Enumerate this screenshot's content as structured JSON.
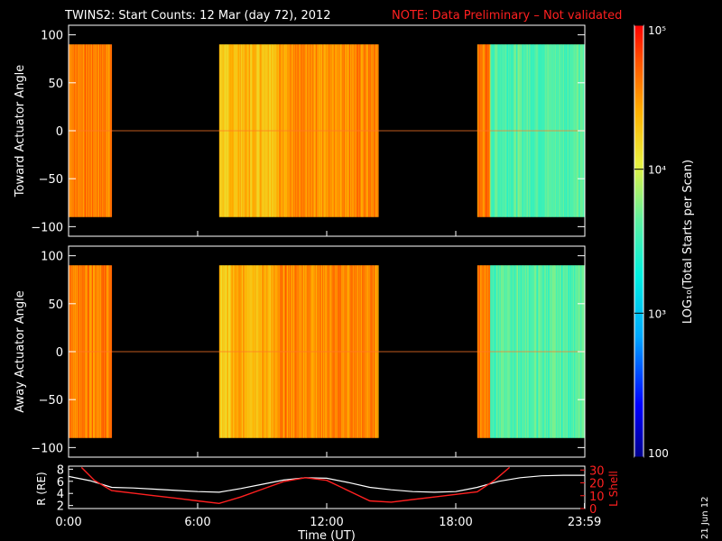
{
  "header": {
    "title": "TWINS2: Start Counts: 12 Mar (day  72), 2012",
    "note": "NOTE: Data Preliminary – Not validated",
    "note_color": "#ff2020"
  },
  "footer": {
    "date_stamp": "21 Jun 12"
  },
  "colors": {
    "background": "#000000",
    "axes": "#ffffff",
    "lshell": "#ff2020"
  },
  "chart_data": [
    {
      "type": "heatmap",
      "title": "",
      "ylabel": "Toward Actuator Angle",
      "xlabel": "",
      "ylim": [
        -110,
        110
      ],
      "xlim_hours": [
        0,
        24
      ],
      "yticks": [
        100,
        50,
        0,
        -50,
        -100
      ],
      "ytick_labels": [
        "100",
        "50",
        "0",
        "−50",
        "−100"
      ],
      "data_ylim": [
        -90,
        90
      ],
      "coverage_hours": [
        [
          0.0,
          2.0
        ],
        [
          7.0,
          14.4
        ],
        [
          19.0,
          24.0
        ]
      ],
      "log_counts_by_segment": [
        {
          "range_hours": [
            0.0,
            2.0
          ],
          "log10_counts": 4.6
        },
        {
          "range_hours": [
            7.0,
            7.6
          ],
          "log10_counts": 4.25
        },
        {
          "range_hours": [
            7.6,
            9.8
          ],
          "log10_counts": 4.35
        },
        {
          "range_hours": [
            9.8,
            12.4
          ],
          "log10_counts": 4.5
        },
        {
          "range_hours": [
            12.4,
            14.4
          ],
          "log10_counts": 4.55
        },
        {
          "range_hours": [
            19.0,
            19.6
          ],
          "log10_counts": 4.6
        },
        {
          "range_hours": [
            19.6,
            24.0
          ],
          "log10_counts": 3.6
        }
      ]
    },
    {
      "type": "heatmap",
      "title": "",
      "ylabel": "Away Actuator Angle",
      "xlabel": "",
      "ylim": [
        -110,
        110
      ],
      "xlim_hours": [
        0,
        24
      ],
      "yticks": [
        100,
        50,
        0,
        -50,
        -100
      ],
      "ytick_labels": [
        "100",
        "50",
        "0",
        "−50",
        "−100"
      ],
      "data_ylim": [
        -90,
        90
      ],
      "coverage_hours": [
        [
          0.0,
          2.0
        ],
        [
          7.0,
          14.4
        ],
        [
          19.0,
          24.0
        ]
      ],
      "log_counts_by_segment": [
        {
          "range_hours": [
            0.0,
            2.0
          ],
          "log10_counts": 4.6
        },
        {
          "range_hours": [
            7.0,
            7.6
          ],
          "log10_counts": 4.25
        },
        {
          "range_hours": [
            7.6,
            9.8
          ],
          "log10_counts": 4.4
        },
        {
          "range_hours": [
            9.8,
            12.4
          ],
          "log10_counts": 4.55
        },
        {
          "range_hours": [
            12.4,
            14.4
          ],
          "log10_counts": 4.55
        },
        {
          "range_hours": [
            19.0,
            19.6
          ],
          "log10_counts": 4.6
        },
        {
          "range_hours": [
            19.6,
            24.0
          ],
          "log10_counts": 3.6
        }
      ]
    },
    {
      "type": "line",
      "title": "",
      "xlabel": "Time (UT)",
      "ylabel": "R (RE)",
      "ylabel_right": "L Shell",
      "xticks_hours": [
        0,
        6,
        12,
        18,
        23.983
      ],
      "xtick_labels": [
        "0:00",
        "6:00",
        "12:00",
        "18:00",
        "23:59"
      ],
      "ylim": [
        1.5,
        8.5
      ],
      "yticks": [
        2,
        4,
        6,
        8
      ],
      "y2lim": [
        0,
        33
      ],
      "y2ticks": [
        0,
        10,
        20,
        30
      ],
      "series": [
        {
          "name": "R (RE)",
          "axis": "left",
          "color": "#ffffff",
          "x": [
            0,
            1.0,
            2.0,
            3.0,
            4.0,
            5.0,
            6.0,
            7.0,
            8.0,
            9.0,
            10.0,
            11.0,
            12.0,
            13.0,
            14.0,
            15.0,
            16.0,
            17.0,
            18.0,
            19.0,
            20.0,
            21.0,
            22.0,
            23.0,
            24.0
          ],
          "y": [
            6.8,
            6.1,
            5.0,
            4.9,
            4.7,
            4.5,
            4.3,
            4.2,
            4.8,
            5.5,
            6.2,
            6.6,
            6.5,
            5.8,
            5.0,
            4.6,
            4.3,
            4.2,
            4.3,
            5.0,
            6.0,
            6.6,
            6.9,
            7.0,
            7.0
          ]
        },
        {
          "name": "L Shell",
          "axis": "right",
          "color": "#ff2020",
          "x": [
            0.6,
            1.2,
            2.0,
            3.0,
            4.0,
            5.0,
            6.0,
            7.0,
            8.0,
            9.0,
            10.0,
            11.0,
            12.0,
            13.0,
            14.0,
            15.0,
            16.0,
            17.0,
            18.0,
            19.0,
            19.8,
            20.5
          ],
          "y": [
            32,
            22,
            14,
            12,
            10,
            8,
            6,
            4,
            9,
            15,
            21,
            24,
            22,
            14,
            6,
            5,
            7,
            9,
            11,
            13,
            22,
            32
          ]
        }
      ]
    }
  ],
  "colorbar": {
    "label": "LOG₁₀(Total Starts per Scan)",
    "tick_labels": [
      "10⁵",
      "10⁴",
      "10³",
      "100"
    ],
    "log_min": 2,
    "log_max": 5
  }
}
